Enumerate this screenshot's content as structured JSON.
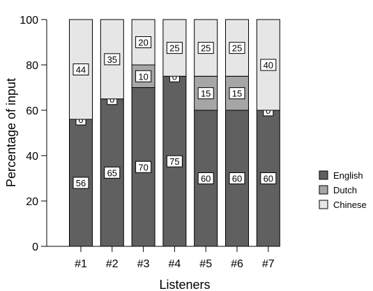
{
  "chart_data": {
    "type": "bar",
    "stacked": true,
    "xlabel": "Listeners",
    "ylabel": "Percentage of input",
    "ylim": [
      0,
      100
    ],
    "yticks": [
      0,
      20,
      40,
      60,
      80,
      100
    ],
    "grid": false,
    "legend_position": "right",
    "categories": [
      "#1",
      "#2",
      "#3",
      "#4",
      "#5",
      "#6",
      "#7"
    ],
    "series": [
      {
        "name": "English",
        "color": "#606060",
        "values": [
          56,
          65,
          70,
          75,
          60,
          60,
          60
        ]
      },
      {
        "name": "Dutch",
        "color": "#a6a6a6",
        "values": [
          0,
          0,
          10,
          0,
          15,
          15,
          0
        ]
      },
      {
        "name": "Chinese",
        "color": "#e6e6e6",
        "values": [
          44,
          35,
          20,
          25,
          25,
          25,
          40
        ]
      }
    ]
  }
}
